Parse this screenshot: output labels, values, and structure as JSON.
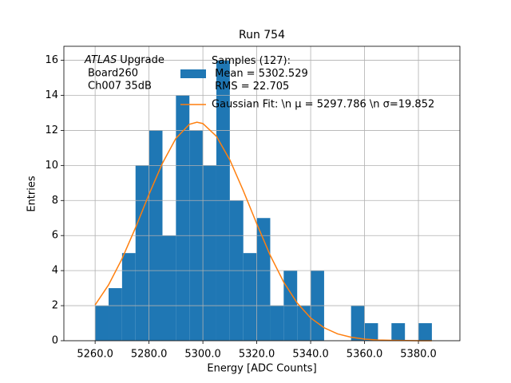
{
  "chart_data": {
    "type": "histogram",
    "title": "Run 754",
    "xlabel": "Energy [ADC Counts]",
    "ylabel": "Entries",
    "annotation": {
      "experiment": "ATLAS",
      "lines": [
        "Upgrade",
        "Board260",
        "Ch007 35dB"
      ]
    },
    "bins": [
      5260,
      5265,
      5270,
      5275,
      5280,
      5285,
      5290,
      5295,
      5300,
      5305,
      5310,
      5315,
      5320,
      5325,
      5330,
      5335,
      5340,
      5345,
      5350,
      5355,
      5360,
      5365,
      5370,
      5375,
      5380,
      5385
    ],
    "series": [
      {
        "name": "Samples (127):\n Mean = 5302.529\n RMS = 22.705",
        "color": "#1f77b4",
        "values": [
          2,
          3,
          5,
          10,
          12,
          6,
          14,
          12,
          10,
          16,
          8,
          5,
          7,
          2,
          4,
          2,
          4,
          0,
          0,
          2,
          1,
          0,
          1,
          0,
          1
        ]
      },
      {
        "name": "Gaussian Fit: \\n μ = 5297.786 \\n σ=19.852",
        "color": "#ff7f0e",
        "type": "line",
        "x": [
          5260,
          5265,
          5270,
          5275,
          5280,
          5285,
          5290,
          5295,
          5297.786,
          5300,
          5305,
          5310,
          5315,
          5320,
          5325,
          5330,
          5335,
          5340,
          5345,
          5350,
          5355,
          5360,
          5365,
          5370,
          5375,
          5380,
          5385
        ],
        "values": [
          2.04,
          3.19,
          4.68,
          6.45,
          8.35,
          10.13,
          11.55,
          12.35,
          12.47,
          12.39,
          11.67,
          10.32,
          8.56,
          6.67,
          4.87,
          3.34,
          2.15,
          1.3,
          0.74,
          0.39,
          0.2,
          0.09,
          0.04,
          0.02,
          0.01,
          0,
          0
        ]
      }
    ],
    "xlim": [
      5248.4,
      5395.4
    ],
    "ylim": [
      0,
      16.8
    ],
    "xticks": [
      {
        "value": 5260,
        "label": "5260.0"
      },
      {
        "value": 5280,
        "label": "5280.0"
      },
      {
        "value": 5300,
        "label": "5300.0"
      },
      {
        "value": 5320,
        "label": "5320.0"
      },
      {
        "value": 5340,
        "label": "5340.0"
      },
      {
        "value": 5360,
        "label": "5360.0"
      },
      {
        "value": 5380,
        "label": "5380.0"
      }
    ],
    "yticks": [
      0,
      2,
      4,
      6,
      8,
      10,
      12,
      14,
      16
    ],
    "grid": true,
    "legend": "upper center"
  }
}
